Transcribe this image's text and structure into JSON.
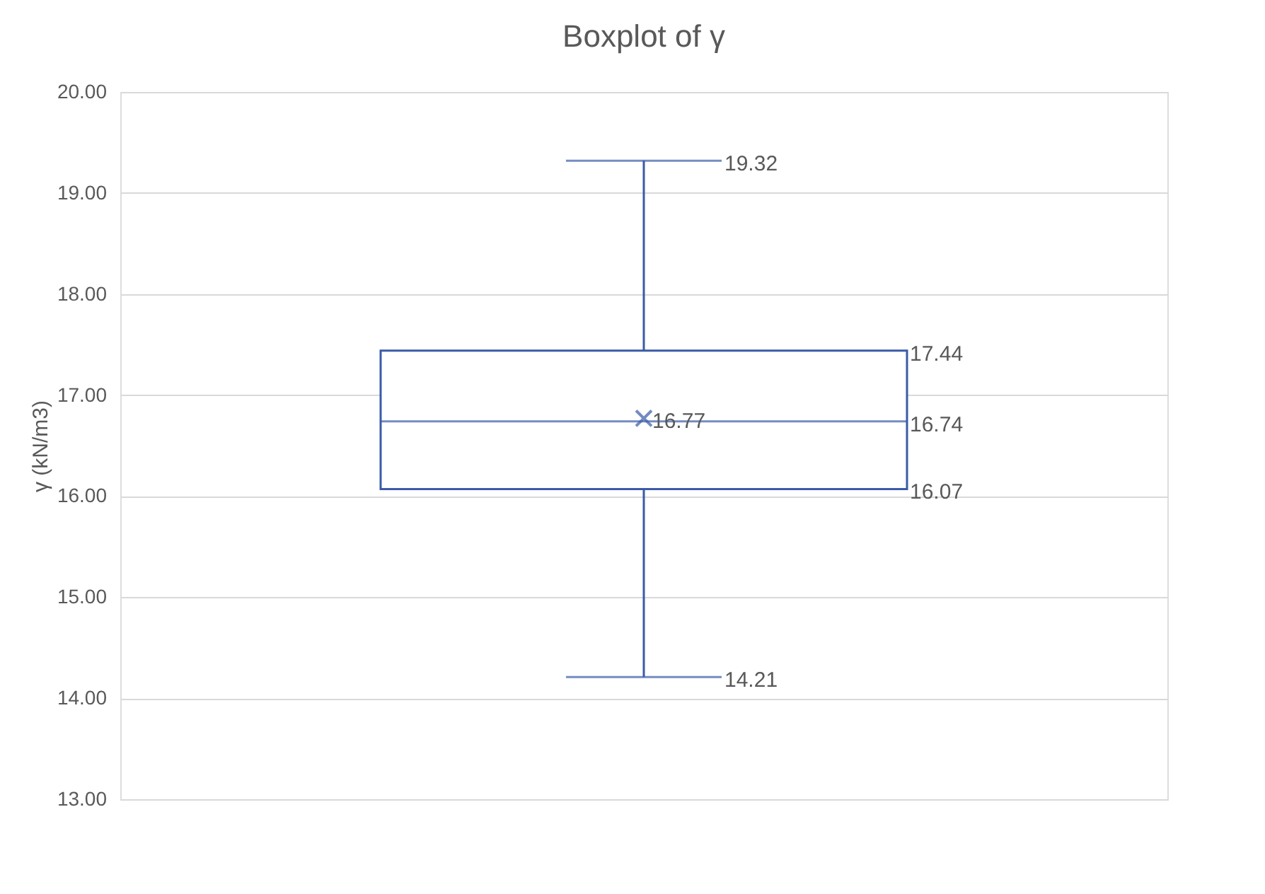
{
  "chart_data": {
    "type": "box",
    "title": "Boxplot of γ",
    "ylabel": "γ (kN/m3)",
    "categories": [
      null
    ],
    "boxes": [
      {
        "low": 14.21,
        "q1": 16.07,
        "median": 16.74,
        "q3": 17.44,
        "high": 19.32,
        "mean": 16.77
      }
    ],
    "color": "#3a5ba7",
    "marker": "cross",
    "grid": "y",
    "tick_labels": "y",
    "annotations": [
      "19.32",
      "17.44",
      "16.77",
      "16.74",
      "16.07",
      "14.21"
    ],
    "ylim": [
      13,
      20
    ],
    "yticks": [
      {
        "value": 13,
        "label": "13.00"
      },
      {
        "value": 14,
        "label": "14.00"
      },
      {
        "value": 15,
        "label": "15.00"
      },
      {
        "value": 16,
        "label": "16.00"
      },
      {
        "value": 17,
        "label": "17.00"
      },
      {
        "value": 18,
        "label": "18.00"
      },
      {
        "value": 19,
        "label": "19.00"
      },
      {
        "value": 20,
        "label": "20.00"
      }
    ]
  }
}
